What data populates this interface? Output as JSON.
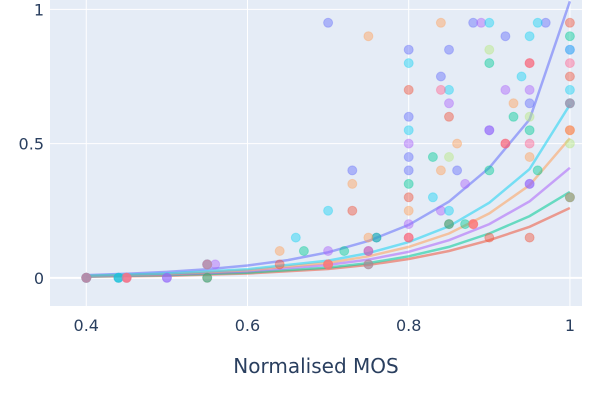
{
  "chart_data": {
    "type": "scatter",
    "title": "",
    "xlabel": "Normalised MOS",
    "ylabel": "",
    "xlim": [
      0.355,
      1.015
    ],
    "ylim": [
      -0.105,
      1.035
    ],
    "x_ticks": [
      0.4,
      0.6,
      0.8,
      1
    ],
    "x_tick_labels": [
      "0.4",
      "0.6",
      "0.8",
      "1"
    ],
    "y_ticks": [
      0,
      0.5,
      1
    ],
    "y_tick_labels": [
      "0",
      "0.5",
      "1"
    ],
    "grid": true,
    "legend": "none",
    "colors": {
      "plot_background": "#e5ecf6",
      "grid": "#ffffff",
      "text": "#2a3f5f"
    },
    "series": [
      {
        "color": "#636efa",
        "points": [
          [
            0.4,
            0
          ],
          [
            0.44,
            0
          ],
          [
            0.5,
            0
          ],
          [
            0.55,
            0.05
          ],
          [
            0.7,
            0.95
          ],
          [
            0.73,
            0.4
          ],
          [
            0.76,
            0.15
          ],
          [
            0.8,
            0.85
          ],
          [
            0.8,
            0.6
          ],
          [
            0.8,
            0.45
          ],
          [
            0.8,
            0.4
          ],
          [
            0.84,
            0.75
          ],
          [
            0.85,
            0.85
          ],
          [
            0.86,
            0.4
          ],
          [
            0.88,
            0.95
          ],
          [
            0.9,
            0.55
          ],
          [
            0.92,
            0.9
          ],
          [
            0.95,
            0.65
          ],
          [
            0.95,
            0.35
          ],
          [
            0.97,
            0.95
          ],
          [
            1,
            0.3
          ]
        ],
        "fit": [
          [
            0.4,
            0.01
          ],
          [
            0.45,
            0.015
          ],
          [
            0.5,
            0.022
          ],
          [
            0.55,
            0.032
          ],
          [
            0.6,
            0.046
          ],
          [
            0.65,
            0.066
          ],
          [
            0.7,
            0.095
          ],
          [
            0.75,
            0.137
          ],
          [
            0.8,
            0.197
          ],
          [
            0.85,
            0.284
          ],
          [
            0.9,
            0.41
          ],
          [
            0.95,
            0.59
          ],
          [
            1,
            1.03
          ]
        ]
      },
      {
        "color": "#ef553b",
        "points": [
          [
            0.4,
            0
          ],
          [
            0.45,
            0
          ],
          [
            0.55,
            0
          ],
          [
            0.64,
            0.05
          ],
          [
            0.7,
            0.05
          ],
          [
            0.73,
            0.25
          ],
          [
            0.75,
            0.1
          ],
          [
            0.8,
            0.7
          ],
          [
            0.8,
            0.3
          ],
          [
            0.8,
            0.15
          ],
          [
            0.85,
            0.6
          ],
          [
            0.85,
            0.2
          ],
          [
            0.88,
            0.2
          ],
          [
            0.9,
            0.15
          ],
          [
            0.92,
            0.5
          ],
          [
            0.95,
            0.15
          ],
          [
            0.95,
            0.8
          ],
          [
            1,
            0.95
          ],
          [
            1,
            0.75
          ],
          [
            1,
            0.55
          ]
        ],
        "fit": [
          [
            0.4,
            0.004
          ],
          [
            0.5,
            0.008
          ],
          [
            0.6,
            0.016
          ],
          [
            0.7,
            0.033
          ],
          [
            0.75,
            0.048
          ],
          [
            0.8,
            0.07
          ],
          [
            0.85,
            0.1
          ],
          [
            0.9,
            0.14
          ],
          [
            0.95,
            0.19
          ],
          [
            1,
            0.26
          ]
        ]
      },
      {
        "color": "#00cc96",
        "points": [
          [
            0.4,
            0
          ],
          [
            0.44,
            0
          ],
          [
            0.55,
            0
          ],
          [
            0.67,
            0.1
          ],
          [
            0.72,
            0.1
          ],
          [
            0.75,
            0.05
          ],
          [
            0.76,
            0.15
          ],
          [
            0.8,
            0.35
          ],
          [
            0.83,
            0.45
          ],
          [
            0.85,
            0.2
          ],
          [
            0.87,
            0.2
          ],
          [
            0.9,
            0.8
          ],
          [
            0.9,
            0.4
          ],
          [
            0.93,
            0.6
          ],
          [
            0.95,
            0.55
          ],
          [
            0.96,
            0.4
          ],
          [
            1,
            0.9
          ],
          [
            1,
            0.65
          ],
          [
            1,
            0.3
          ]
        ],
        "fit": [
          [
            0.4,
            0.005
          ],
          [
            0.5,
            0.01
          ],
          [
            0.6,
            0.019
          ],
          [
            0.7,
            0.038
          ],
          [
            0.75,
            0.055
          ],
          [
            0.8,
            0.08
          ],
          [
            0.85,
            0.115
          ],
          [
            0.9,
            0.165
          ],
          [
            0.95,
            0.23
          ],
          [
            1,
            0.32
          ]
        ]
      },
      {
        "color": "#ab63fa",
        "points": [
          [
            0.4,
            0
          ],
          [
            0.45,
            0
          ],
          [
            0.5,
            0
          ],
          [
            0.56,
            0.05
          ],
          [
            0.7,
            0.1
          ],
          [
            0.75,
            0.1
          ],
          [
            0.8,
            0.2
          ],
          [
            0.8,
            0.5
          ],
          [
            0.84,
            0.25
          ],
          [
            0.85,
            0.65
          ],
          [
            0.87,
            0.35
          ],
          [
            0.89,
            0.95
          ],
          [
            0.9,
            0.55
          ],
          [
            0.92,
            0.7
          ],
          [
            0.95,
            0.7
          ],
          [
            0.95,
            0.35
          ],
          [
            1,
            0.85
          ]
        ],
        "fit": [
          [
            0.4,
            0.006
          ],
          [
            0.5,
            0.012
          ],
          [
            0.6,
            0.024
          ],
          [
            0.7,
            0.048
          ],
          [
            0.75,
            0.068
          ],
          [
            0.8,
            0.097
          ],
          [
            0.85,
            0.14
          ],
          [
            0.9,
            0.2
          ],
          [
            0.95,
            0.285
          ],
          [
            1,
            0.41
          ]
        ]
      },
      {
        "color": "#ffa15a",
        "points": [
          [
            0.4,
            0
          ],
          [
            0.45,
            0
          ],
          [
            0.55,
            0.05
          ],
          [
            0.64,
            0.1
          ],
          [
            0.7,
            0.05
          ],
          [
            0.73,
            0.35
          ],
          [
            0.75,
            0.9
          ],
          [
            0.75,
            0.15
          ],
          [
            0.8,
            0.25
          ],
          [
            0.84,
            0.95
          ],
          [
            0.84,
            0.4
          ],
          [
            0.86,
            0.5
          ],
          [
            0.88,
            0.2
          ],
          [
            0.93,
            0.65
          ],
          [
            0.95,
            0.45
          ],
          [
            1,
            0.55
          ],
          [
            1,
            0.3
          ]
        ],
        "fit": [
          [
            0.4,
            0.007
          ],
          [
            0.5,
            0.014
          ],
          [
            0.6,
            0.028
          ],
          [
            0.7,
            0.056
          ],
          [
            0.75,
            0.08
          ],
          [
            0.8,
            0.115
          ],
          [
            0.85,
            0.165
          ],
          [
            0.9,
            0.24
          ],
          [
            0.95,
            0.345
          ],
          [
            1,
            0.52
          ]
        ]
      },
      {
        "color": "#19d3f3",
        "points": [
          [
            0.4,
            0
          ],
          [
            0.44,
            0
          ],
          [
            0.55,
            0.05
          ],
          [
            0.66,
            0.15
          ],
          [
            0.7,
            0.25
          ],
          [
            0.8,
            0.8
          ],
          [
            0.8,
            0.55
          ],
          [
            0.83,
            0.3
          ],
          [
            0.85,
            0.7
          ],
          [
            0.85,
            0.25
          ],
          [
            0.9,
            0.95
          ],
          [
            0.94,
            0.75
          ],
          [
            0.95,
            0.9
          ],
          [
            0.96,
            0.95
          ],
          [
            1,
            0.85
          ],
          [
            1,
            0.7
          ],
          [
            1,
            0.65
          ]
        ],
        "fit": [
          [
            0.4,
            0.008
          ],
          [
            0.5,
            0.016
          ],
          [
            0.6,
            0.032
          ],
          [
            0.7,
            0.064
          ],
          [
            0.75,
            0.092
          ],
          [
            0.8,
            0.133
          ],
          [
            0.85,
            0.192
          ],
          [
            0.9,
            0.28
          ],
          [
            0.95,
            0.405
          ],
          [
            1,
            0.645
          ]
        ]
      },
      {
        "color": "#ff6692",
        "points": [
          [
            0.4,
            0
          ],
          [
            0.45,
            0
          ],
          [
            0.55,
            0.05
          ],
          [
            0.7,
            0.05
          ],
          [
            0.75,
            0.05
          ],
          [
            0.8,
            0.15
          ],
          [
            0.84,
            0.7
          ],
          [
            0.88,
            0.2
          ],
          [
            0.92,
            0.5
          ],
          [
            0.95,
            0.5
          ],
          [
            0.95,
            0.8
          ],
          [
            1,
            0.8
          ],
          [
            1,
            0.65
          ]
        ],
        "fit": []
      },
      {
        "color": "#b6e880",
        "points": [
          [
            0.85,
            0.45
          ],
          [
            0.9,
            0.85
          ],
          [
            0.95,
            0.6
          ],
          [
            1,
            0.5
          ]
        ],
        "fit": []
      }
    ]
  }
}
